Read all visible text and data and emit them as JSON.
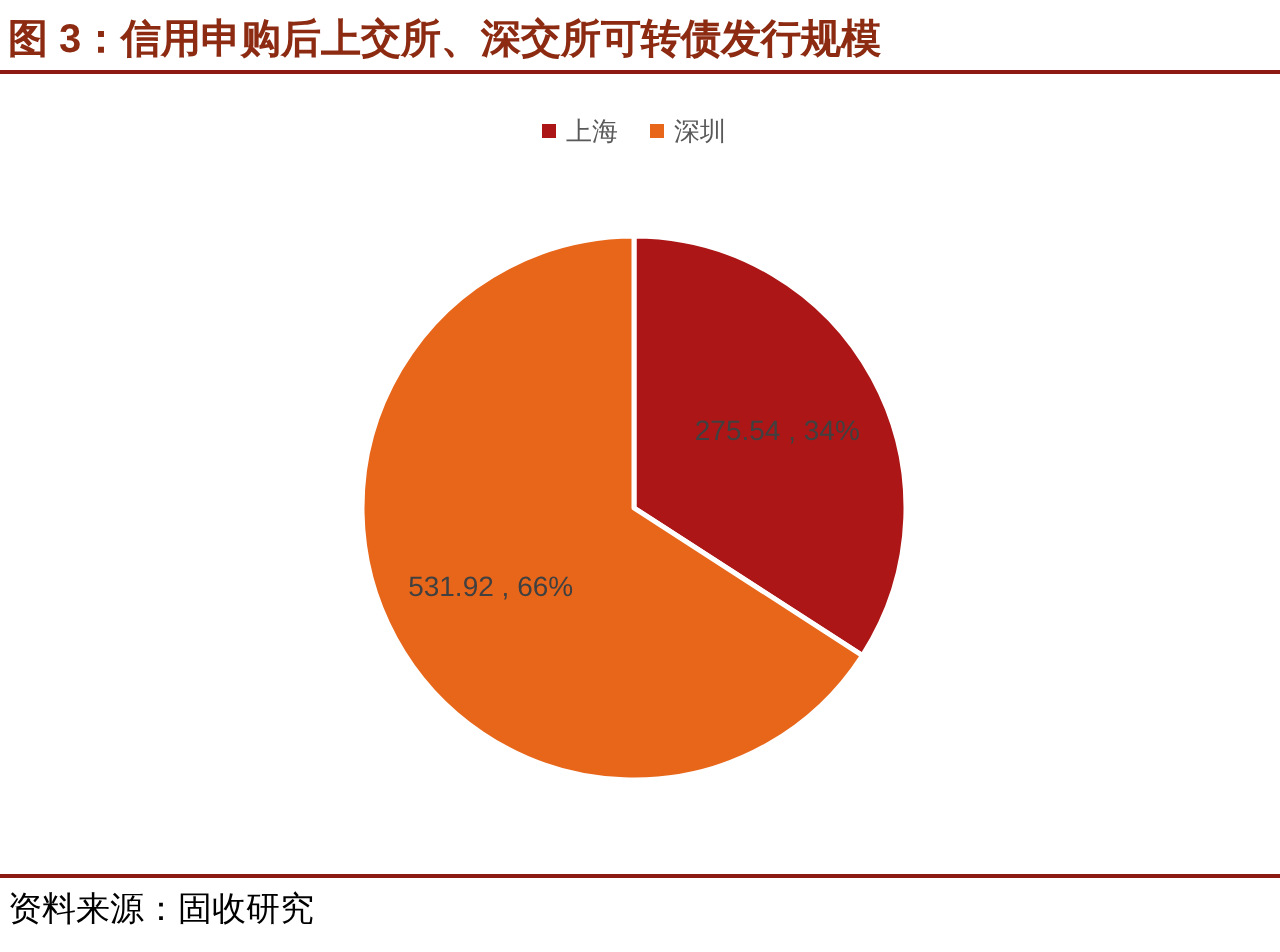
{
  "chart_data": {
    "type": "pie",
    "title": "图 3：信用申购后上交所、深交所可转债发行规模",
    "categories": [
      "上海",
      "深圳"
    ],
    "values": [
      275.54,
      531.92
    ],
    "colors": [
      "#ad1616",
      "#e8661a"
    ],
    "value_labels": [
      "275.54 , 34%",
      "531.92 , 66%"
    ],
    "legend": "top",
    "annotations": [
      "资料来源：固收研究"
    ]
  }
}
